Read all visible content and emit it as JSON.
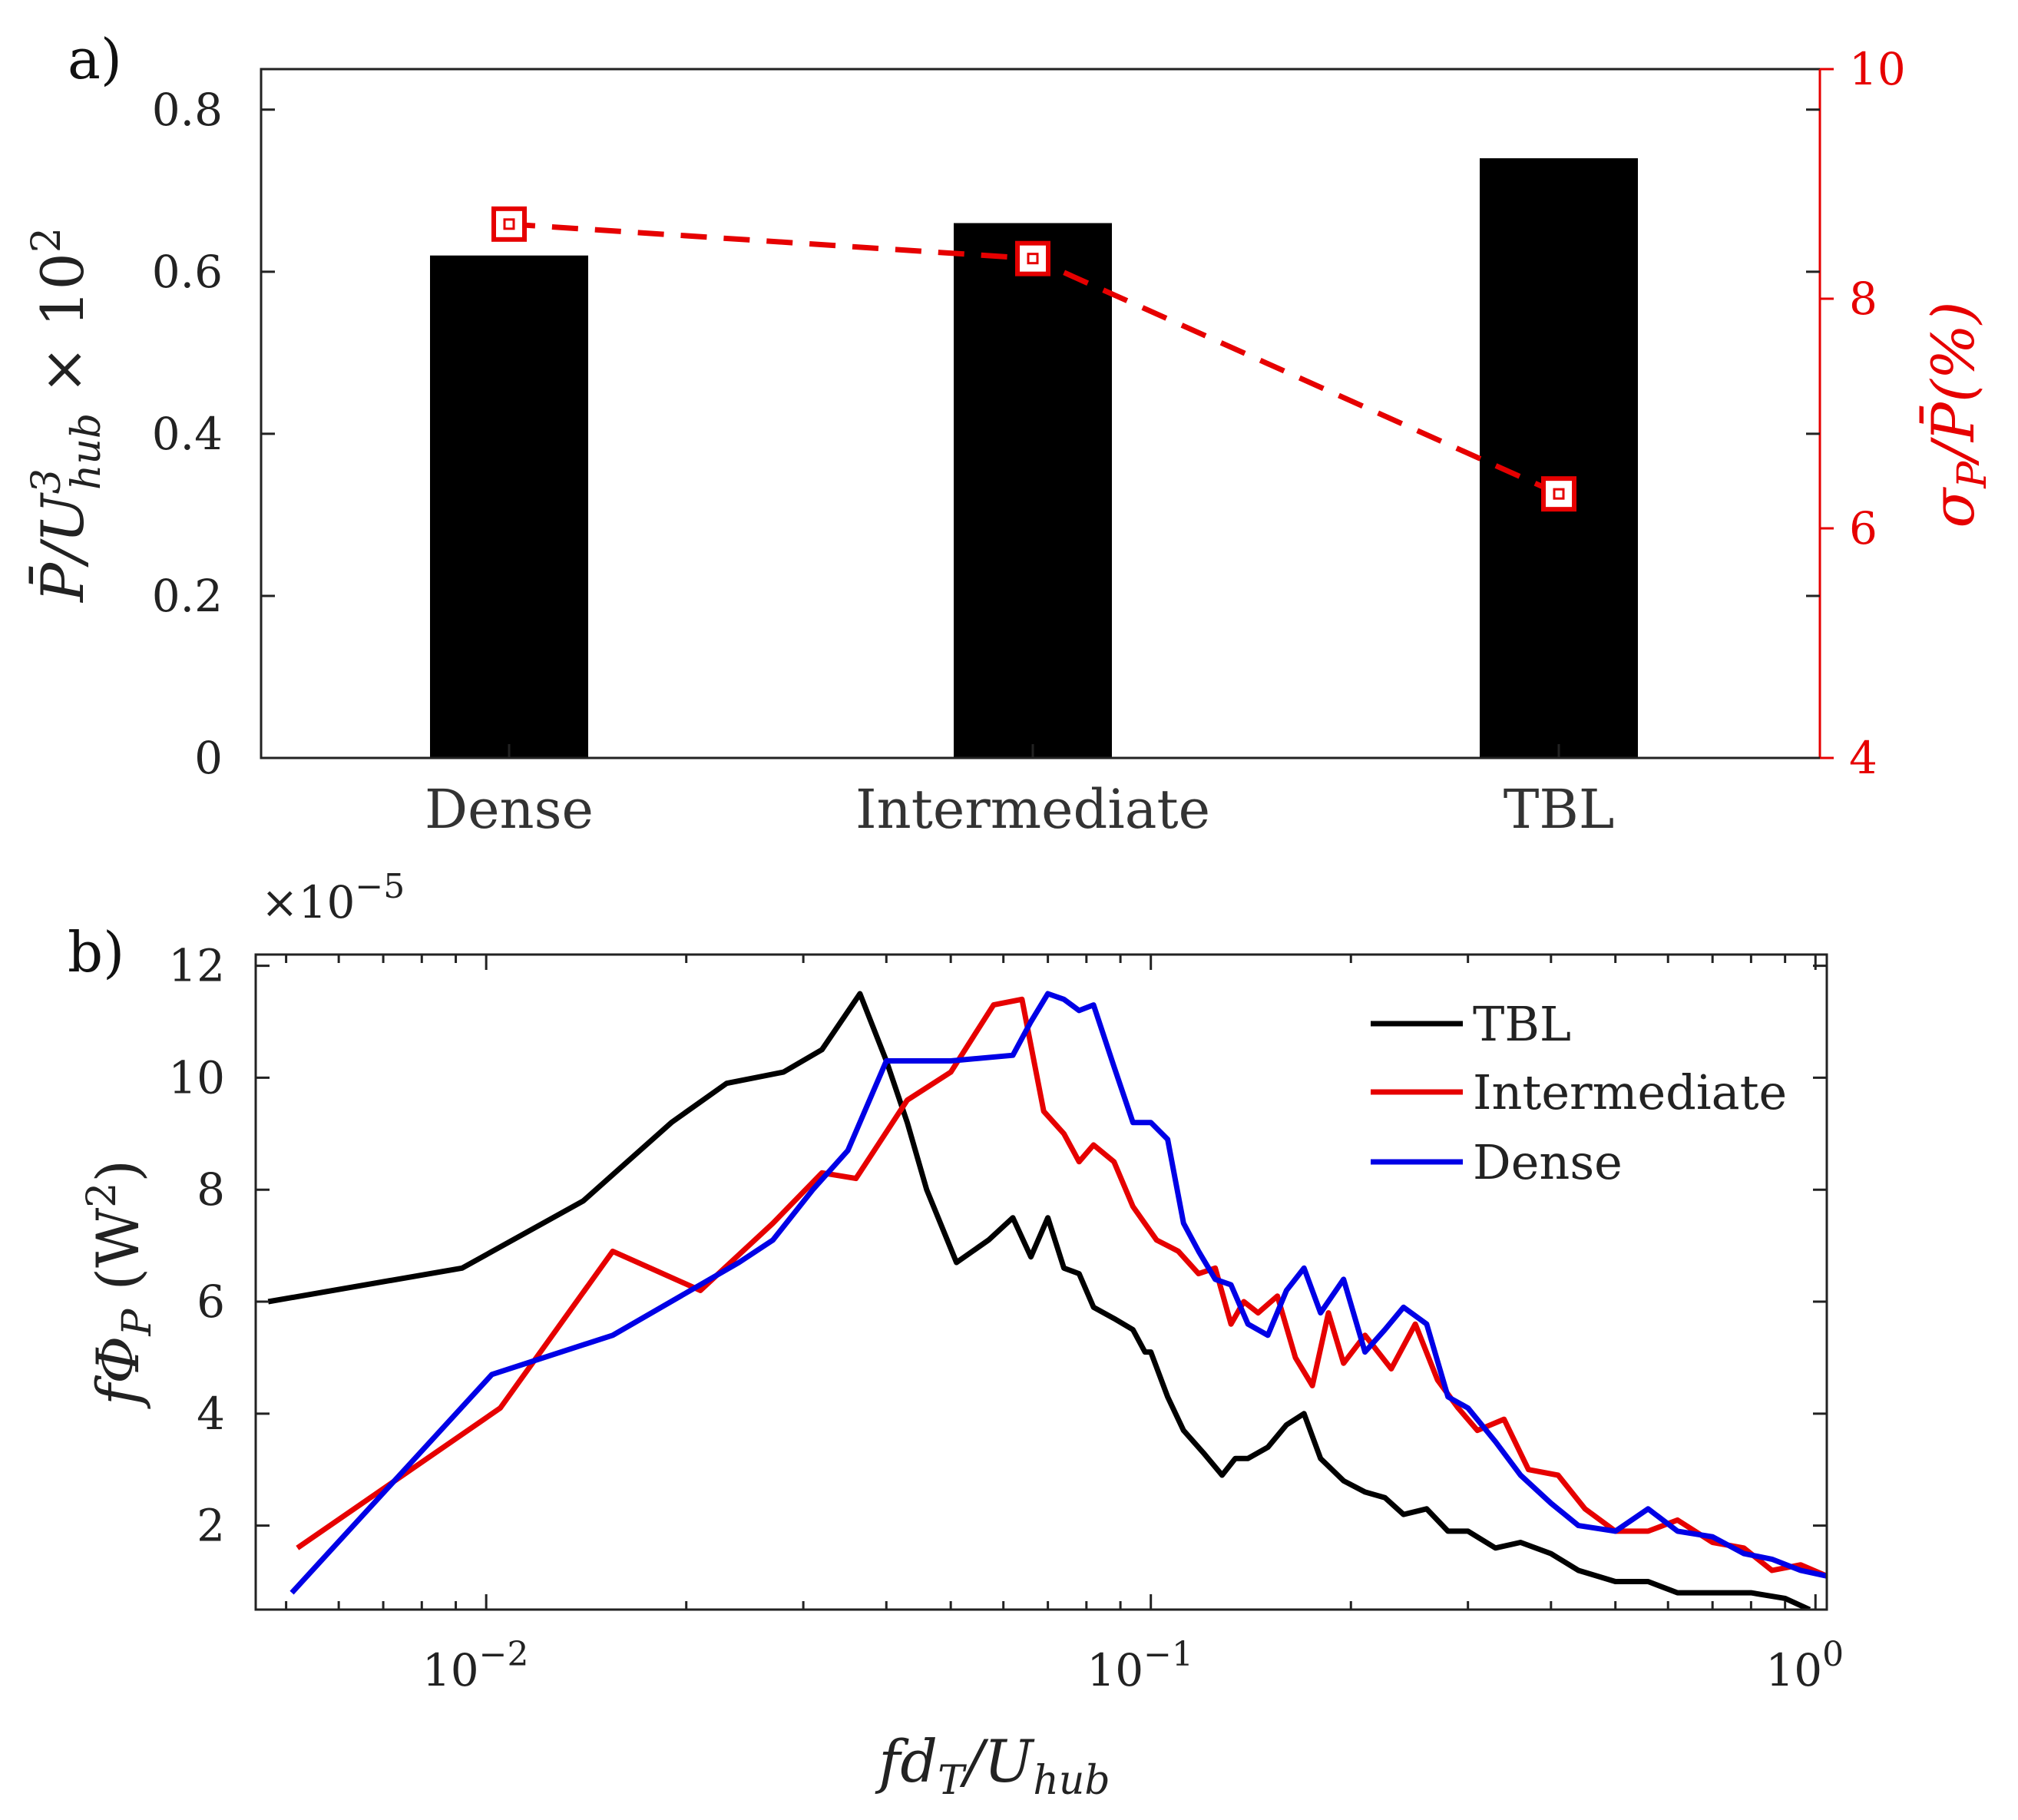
{
  "chart_data": [
    {
      "panel": "a)",
      "type": "bar",
      "categories": [
        "Dense",
        "Intermediate",
        "TBL"
      ],
      "values": [
        0.62,
        0.66,
        0.74
      ],
      "ylabel": "P̄/U³hub × 10²",
      "ylabel_parts": {
        "main": "P̄/U",
        "sup": "3",
        "sub": "hub",
        "tail": " × 10",
        "tail_sup": "2"
      },
      "ylim": [
        0,
        0.85
      ],
      "yticks": [
        "0",
        "0.2",
        "0.4",
        "0.6",
        "0.8"
      ],
      "bar_color": "#000000",
      "secondary": {
        "type": "line",
        "style": "dashed",
        "marker": "square",
        "color": "#e60000",
        "values": [
          8.65,
          8.35,
          6.3
        ],
        "ylabel": "σP/P̄(%)",
        "ylabel_parts": {
          "sigma": "σ",
          "sub": "P",
          "tail": "/P̄(%)"
        },
        "ylim": [
          4,
          10
        ],
        "yticks": [
          "4",
          "6",
          "8",
          "10"
        ]
      }
    },
    {
      "panel": "b)",
      "type": "line",
      "xscale": "log",
      "xlim": [
        0.0045,
        1.04
      ],
      "ylim": [
        0.5,
        12.2
      ],
      "multiplier": "×10−5",
      "multiplier_parts": {
        "base": "×10",
        "exp": "−5"
      },
      "xlabel": "fdT/Uhub",
      "xlabel_parts": {
        "a": "fd",
        "a_sub": "T",
        "b": "/U",
        "b_sub": "hub"
      },
      "ylabel": "fΦP (W²)",
      "ylabel_parts": {
        "a": "fΦ",
        "a_sub": "P",
        "b": " (W",
        "b_sup": "2",
        "c": ")"
      },
      "xticks": [
        {
          "value": 0.01,
          "base": "10",
          "exp": "−2"
        },
        {
          "value": 0.1,
          "base": "10",
          "exp": "−1"
        },
        {
          "value": 1,
          "base": "10",
          "exp": "0"
        }
      ],
      "yticks": [
        "2",
        "4",
        "6",
        "8",
        "10",
        "12"
      ],
      "legend": {
        "location": "top-right",
        "entries": [
          "TBL",
          "Intermediate",
          "Dense"
        ]
      },
      "series": [
        {
          "name": "TBL",
          "color": "#000000",
          "x": [
            0.0047,
            0.0092,
            0.014,
            0.019,
            0.023,
            0.028,
            0.032,
            0.0365,
            0.04,
            0.043,
            0.046,
            0.051,
            0.057,
            0.062,
            0.066,
            0.07,
            0.074,
            0.078,
            0.082,
            0.088,
            0.094,
            0.098,
            0.1,
            0.106,
            0.112,
            0.12,
            0.128,
            0.134,
            0.14,
            0.15,
            0.16,
            0.17,
            0.18,
            0.195,
            0.21,
            0.225,
            0.24,
            0.26,
            0.28,
            0.3,
            0.33,
            0.36,
            0.4,
            0.44,
            0.5,
            0.56,
            0.62,
            0.7,
            0.8,
            0.9,
            0.98
          ],
          "y": [
            6.0,
            6.6,
            7.8,
            9.2,
            9.9,
            10.1,
            10.5,
            11.5,
            10.3,
            9.2,
            8.0,
            6.7,
            7.1,
            7.5,
            6.8,
            7.5,
            6.6,
            6.5,
            5.9,
            5.7,
            5.5,
            5.1,
            5.1,
            4.3,
            3.7,
            3.3,
            2.9,
            3.2,
            3.2,
            3.4,
            3.8,
            4.0,
            3.2,
            2.8,
            2.6,
            2.5,
            2.2,
            2.3,
            1.9,
            1.9,
            1.6,
            1.7,
            1.5,
            1.2,
            1.0,
            1.0,
            0.8,
            0.8,
            0.8,
            0.7,
            0.5
          ]
        },
        {
          "name": "Intermediate",
          "color": "#e60000",
          "x": [
            0.0052,
            0.0105,
            0.0155,
            0.021,
            0.027,
            0.032,
            0.036,
            0.043,
            0.05,
            0.058,
            0.064,
            0.069,
            0.074,
            0.078,
            0.082,
            0.088,
            0.094,
            0.102,
            0.11,
            0.118,
            0.125,
            0.132,
            0.138,
            0.145,
            0.155,
            0.165,
            0.175,
            0.185,
            0.195,
            0.21,
            0.23,
            0.25,
            0.27,
            0.29,
            0.31,
            0.34,
            0.37,
            0.41,
            0.45,
            0.5,
            0.56,
            0.62,
            0.7,
            0.78,
            0.86,
            0.95,
            1.04
          ],
          "y": [
            1.6,
            4.1,
            6.9,
            6.2,
            7.4,
            8.3,
            8.2,
            9.6,
            10.1,
            11.3,
            11.4,
            9.4,
            9.0,
            8.5,
            8.8,
            8.5,
            7.7,
            7.1,
            6.9,
            6.5,
            6.6,
            5.6,
            6.0,
            5.8,
            6.1,
            5.0,
            4.5,
            5.8,
            4.9,
            5.4,
            4.8,
            5.6,
            4.6,
            4.1,
            3.7,
            3.9,
            3.0,
            2.9,
            2.3,
            1.9,
            1.9,
            2.1,
            1.7,
            1.6,
            1.2,
            1.3,
            1.1
          ]
        },
        {
          "name": "Dense",
          "color": "#0000e6",
          "x": [
            0.0051,
            0.0102,
            0.0155,
            0.024,
            0.027,
            0.031,
            0.035,
            0.04,
            0.05,
            0.062,
            0.066,
            0.07,
            0.074,
            0.078,
            0.082,
            0.088,
            0.094,
            0.1,
            0.106,
            0.112,
            0.118,
            0.125,
            0.132,
            0.14,
            0.15,
            0.16,
            0.17,
            0.18,
            0.195,
            0.21,
            0.225,
            0.24,
            0.26,
            0.28,
            0.3,
            0.33,
            0.36,
            0.4,
            0.44,
            0.5,
            0.56,
            0.62,
            0.7,
            0.78,
            0.86,
            0.95,
            1.04
          ],
          "y": [
            0.8,
            4.7,
            5.4,
            6.7,
            7.1,
            8.0,
            8.7,
            10.3,
            10.3,
            10.4,
            11.0,
            11.5,
            11.4,
            11.2,
            11.3,
            10.2,
            9.2,
            9.2,
            8.9,
            7.4,
            6.9,
            6.4,
            6.3,
            5.6,
            5.4,
            6.2,
            6.6,
            5.8,
            6.4,
            5.1,
            5.5,
            5.9,
            5.6,
            4.3,
            4.1,
            3.5,
            2.9,
            2.4,
            2.0,
            1.9,
            2.3,
            1.9,
            1.8,
            1.5,
            1.4,
            1.2,
            1.1
          ]
        }
      ]
    }
  ]
}
